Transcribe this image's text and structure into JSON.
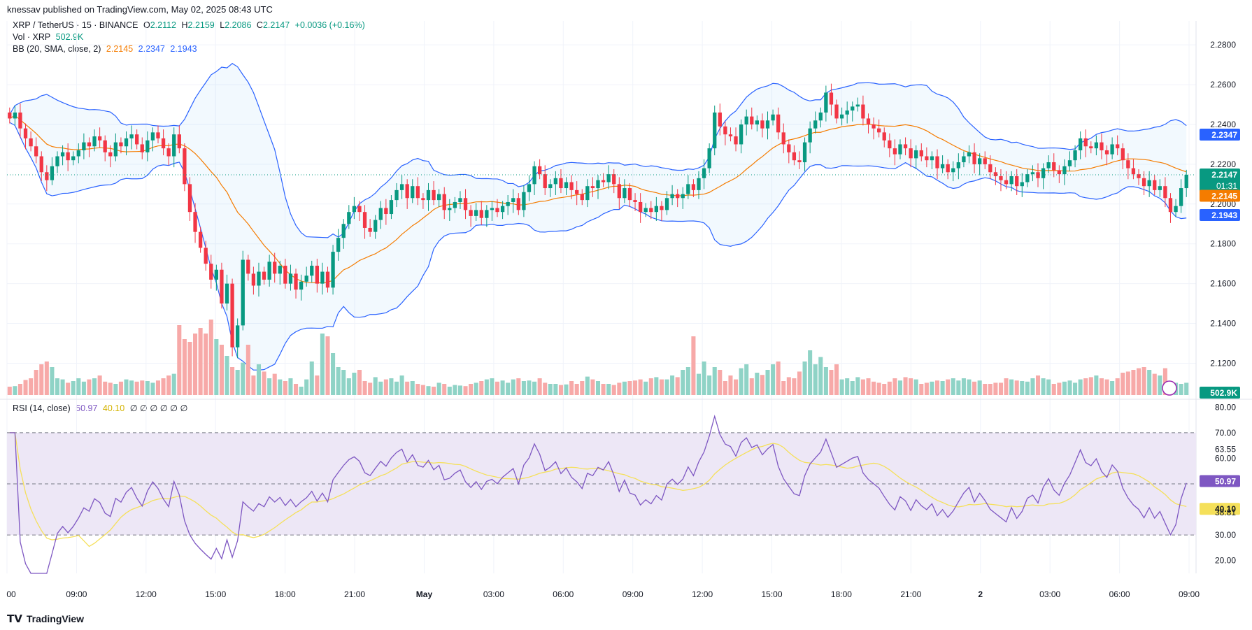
{
  "header": {
    "published": "knessav published on TradingView.com, May 02, 2025 08:43 UTC"
  },
  "legend": {
    "symbol": "XRP / TetherUS · 15 · BINANCE",
    "o_label": "O",
    "o": "2.2112",
    "h_label": "H",
    "h": "2.2159",
    "l_label": "L",
    "l": "2.2086",
    "c_label": "C",
    "c": "2.2147",
    "change": "+0.0036 (+0.16%)",
    "vol_label": "Vol · XRP",
    "vol": "502.9K",
    "bb_label": "BB (20, SMA, close, 2)",
    "bb_basis": "2.2145",
    "bb_upper": "2.2347",
    "bb_lower": "2.1943",
    "rsi_label": "RSI (14, close)",
    "rsi_value": "50.97",
    "rsi_ma": "40.10",
    "rsi_extras": "∅ ∅ ∅ ∅ ∅ ∅"
  },
  "footer": {
    "brand": "TradingView"
  },
  "colors": {
    "up": "#089981",
    "down": "#f23645",
    "vol_up": "#8fd3c6",
    "vol_down": "#f7a9a8",
    "bb_band": "#2962ff",
    "bb_basis": "#f57c00",
    "rsi": "#7e57c2",
    "rsi_ma": "#f5e05a",
    "rsi_fill": "#ede7f6"
  },
  "chart_data": [
    {
      "type": "candlestick",
      "title": "XRP / TetherUS · 15 · BINANCE",
      "ylim": [
        2.104,
        2.292
      ],
      "y_ticks": [
        "2.2800",
        "2.2600",
        "2.2400",
        "2.2200",
        "2.2000",
        "2.1800",
        "2.1600",
        "2.1400",
        "2.1200"
      ],
      "x_tick_labels": [
        "00",
        "09:00",
        "12:00",
        "15:00",
        "18:00",
        "21:00",
        "May",
        "03:00",
        "06:00",
        "09:00",
        "12:00",
        "15:00",
        "18:00",
        "21:00",
        "2",
        "03:00",
        "06:00",
        "09:00"
      ],
      "price_tags": [
        {
          "value": "2.2147",
          "sub": "01:31",
          "color": "#089981"
        },
        {
          "value": "2.2347",
          "color": "#2962ff"
        },
        {
          "value": "2.2145",
          "color": "#f57c00"
        },
        {
          "value": "2.1943",
          "color": "#2962ff"
        }
      ],
      "current_price": 2.2147,
      "close": [
        2.243,
        2.246,
        2.238,
        2.233,
        2.229,
        2.224,
        2.216,
        2.212,
        2.219,
        2.224,
        2.226,
        2.222,
        2.224,
        2.227,
        2.231,
        2.229,
        2.234,
        2.232,
        2.226,
        2.224,
        2.231,
        2.229,
        2.233,
        2.235,
        2.23,
        2.226,
        2.232,
        2.236,
        2.233,
        2.228,
        2.224,
        2.235,
        2.228,
        2.21,
        2.196,
        2.186,
        2.178,
        2.17,
        2.162,
        2.167,
        2.15,
        2.16,
        2.128,
        2.139,
        2.172,
        2.165,
        2.159,
        2.166,
        2.162,
        2.171,
        2.165,
        2.169,
        2.16,
        2.165,
        2.157,
        2.161,
        2.164,
        2.169,
        2.16,
        2.166,
        2.158,
        2.176,
        2.183,
        2.19,
        2.196,
        2.199,
        2.196,
        2.188,
        2.186,
        2.192,
        2.198,
        2.195,
        2.202,
        2.207,
        2.21,
        2.203,
        2.209,
        2.203,
        2.202,
        2.207,
        2.202,
        2.205,
        2.197,
        2.198,
        2.201,
        2.203,
        2.197,
        2.194,
        2.197,
        2.193,
        2.197,
        2.198,
        2.196,
        2.199,
        2.201,
        2.203,
        2.197,
        2.206,
        2.21,
        2.219,
        2.215,
        2.208,
        2.21,
        2.213,
        2.208,
        2.211,
        2.207,
        2.205,
        2.202,
        2.209,
        2.208,
        2.212,
        2.211,
        2.215,
        2.21,
        2.203,
        2.208,
        2.202,
        2.201,
        2.196,
        2.198,
        2.196,
        2.199,
        2.197,
        2.203,
        2.205,
        2.203,
        2.205,
        2.21,
        2.207,
        2.213,
        2.218,
        2.228,
        2.246,
        2.239,
        2.235,
        2.234,
        2.23,
        2.24,
        2.244,
        2.24,
        2.242,
        2.238,
        2.242,
        2.245,
        2.236,
        2.23,
        2.226,
        2.222,
        2.221,
        2.231,
        2.238,
        2.242,
        2.246,
        2.256,
        2.25,
        2.243,
        2.245,
        2.247,
        2.249,
        2.25,
        2.243,
        2.24,
        2.238,
        2.236,
        2.232,
        2.228,
        2.225,
        2.23,
        2.228,
        2.223,
        2.227,
        2.224,
        2.222,
        2.224,
        2.218,
        2.22,
        2.216,
        2.218,
        2.221,
        2.224,
        2.226,
        2.22,
        2.223,
        2.22,
        2.216,
        2.214,
        2.212,
        2.21,
        2.214,
        2.209,
        2.211,
        2.215,
        2.216,
        2.213,
        2.218,
        2.221,
        2.217,
        2.215,
        2.219,
        2.222,
        2.227,
        2.233,
        2.229,
        2.228,
        2.231,
        2.227,
        2.225,
        2.23,
        2.228,
        2.222,
        2.218,
        2.215,
        2.213,
        2.209,
        2.212,
        2.207,
        2.209,
        2.203,
        2.196,
        2.199,
        2.208,
        2.2147
      ],
      "volume_scale_note": "",
      "volume_relative": [
        0.15,
        0.16,
        0.2,
        0.27,
        0.3,
        0.45,
        0.55,
        0.6,
        0.5,
        0.3,
        0.28,
        0.22,
        0.25,
        0.3,
        0.24,
        0.28,
        0.3,
        0.35,
        0.24,
        0.22,
        0.2,
        0.24,
        0.28,
        0.26,
        0.24,
        0.26,
        0.25,
        0.22,
        0.26,
        0.3,
        0.35,
        0.38,
        1.25,
        1.0,
        0.95,
        1.1,
        1.2,
        1.1,
        1.35,
        1.0,
        0.9,
        0.7,
        0.5,
        0.45,
        0.58,
        0.9,
        0.35,
        0.55,
        0.42,
        0.3,
        0.38,
        0.28,
        0.25,
        0.3,
        0.2,
        0.15,
        0.28,
        0.6,
        0.35,
        1.1,
        1.05,
        0.75,
        0.5,
        0.45,
        0.3,
        0.4,
        0.45,
        0.25,
        0.22,
        0.32,
        0.24,
        0.28,
        0.3,
        0.24,
        0.35,
        0.24,
        0.25,
        0.2,
        0.18,
        0.16,
        0.15,
        0.22,
        0.2,
        0.15,
        0.18,
        0.17,
        0.16,
        0.2,
        0.22,
        0.25,
        0.28,
        0.3,
        0.24,
        0.26,
        0.22,
        0.28,
        0.3,
        0.25,
        0.26,
        0.24,
        0.3,
        0.22,
        0.2,
        0.2,
        0.18,
        0.19,
        0.25,
        0.2,
        0.25,
        0.33,
        0.28,
        0.25,
        0.2,
        0.2,
        0.18,
        0.22,
        0.24,
        0.25,
        0.26,
        0.28,
        0.24,
        0.3,
        0.32,
        0.28,
        0.28,
        0.35,
        0.32,
        0.45,
        0.5,
        1.05,
        0.38,
        0.6,
        0.35,
        0.5,
        0.45,
        0.25,
        0.35,
        0.28,
        0.48,
        0.55,
        0.3,
        0.4,
        0.36,
        0.45,
        0.55,
        0.6,
        0.25,
        0.32,
        0.3,
        0.42,
        0.6,
        0.8,
        0.55,
        0.68,
        0.5,
        0.45,
        0.55,
        0.28,
        0.3,
        0.25,
        0.32,
        0.28,
        0.3,
        0.24,
        0.22,
        0.2,
        0.24,
        0.3,
        0.26,
        0.32,
        0.3,
        0.28,
        0.2,
        0.22,
        0.24,
        0.26,
        0.25,
        0.28,
        0.3,
        0.26,
        0.3,
        0.28,
        0.24,
        0.26,
        0.2,
        0.2,
        0.22,
        0.22,
        0.3,
        0.28,
        0.26,
        0.25,
        0.24,
        0.3,
        0.35,
        0.3,
        0.28,
        0.2,
        0.22,
        0.24,
        0.26,
        0.22,
        0.28,
        0.3,
        0.32,
        0.35,
        0.3,
        0.28,
        0.25,
        0.3,
        0.4,
        0.42,
        0.45,
        0.48,
        0.5,
        0.45,
        0.38,
        0.35,
        0.48,
        0.25,
        0.22,
        0.2,
        0.22
      ]
    },
    {
      "type": "line",
      "title": "RSI (14, close)",
      "ylim": [
        15,
        82
      ],
      "y_ticks": [
        "80.00",
        "70.00",
        "63.55",
        "60.00",
        "50.97",
        "40.10",
        "38.81",
        "30.00",
        "20.00"
      ],
      "levels": [
        70,
        50,
        30
      ],
      "series": [
        {
          "name": "RSI (14, close)",
          "values": [
            50.97
          ]
        },
        {
          "name": "RSI MA",
          "values": [
            40.1
          ]
        }
      ]
    }
  ]
}
